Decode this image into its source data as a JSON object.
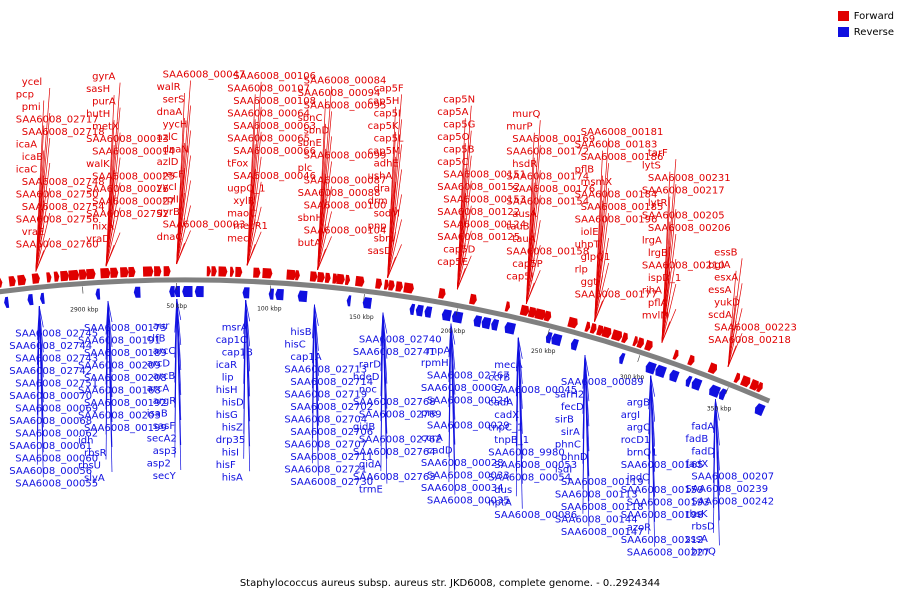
{
  "legend": {
    "forward": "Forward",
    "reverse": "Reverse"
  },
  "colors": {
    "forward": "#e00000",
    "reverse": "#1010e0",
    "backbone": "#808080"
  },
  "caption": "Staphylococcus aureus subsp. aureus str. JKD6008, complete genome. - 0..2924344",
  "ticks": [
    "2900 kbp",
    "50 kbp",
    "100 kbp",
    "150 kbp",
    "200 kbp",
    "250 kbp",
    "300 kbp",
    "350 kbp"
  ],
  "forward_labels": [
    "SAA6008_02760",
    "vraE",
    "SAA6008_02756",
    "SAA6008_02754",
    "SAA6008_02750",
    "SAA6008_02748",
    "icaC",
    "icaB",
    "icaA",
    "SAA6008_02718",
    "SAA6008_02717",
    "pmi",
    "pcp",
    "ycel",
    "vraD",
    "nixA",
    "SAA6008_02752",
    "SAA6008_00027",
    "SAA6008_00026",
    "SAA6008_00025",
    "walK",
    "SAA6008_00014",
    "SAA6008_00013",
    "metX",
    "hutH",
    "purA",
    "sasH",
    "gyrA",
    "dnaC",
    "SAA6008_00003",
    "gyrB",
    "rplI",
    "yycI",
    "recF",
    "azlD",
    "dnaN",
    "azlC",
    "yycH",
    "dnaA",
    "serS",
    "walR",
    "SAA6008_00047",
    "mecI",
    "mecR1",
    "maoC",
    "xylR",
    "ugpQ_1",
    "SAA6008_00046",
    "tFox",
    "SAA6008_00066",
    "SAA6008_00065",
    "SAA6008_00063",
    "SAA6008_00064",
    "SAA6008_00108",
    "SAA6008_00107",
    "SAA6008_00106",
    "butA",
    "SAA6008_00104",
    "sbnH",
    "SAA6008_00100",
    "SAA6008_00088",
    "SAA6008_00087",
    "plc",
    "SAA6008_00099",
    "sbnE",
    "sbnD",
    "sbnC",
    "SAA6008_00095",
    "SAA6008_00094",
    "SAA6008_00084",
    "sasD",
    "sbnI",
    "pnp",
    "sodM",
    "drm",
    "dra",
    "ushA",
    "adhE",
    "cap5M",
    "cap5L",
    "cap5K",
    "cap5I",
    "cap5H",
    "cap5F",
    "cap5E",
    "cap5D",
    "SAA6008_00125",
    "SAA6008_00124",
    "SAA6008_00122",
    "SAA6008_00153",
    "SAA6008_00152",
    "SAA6008_00151",
    "cap5C",
    "cap5B",
    "cap5O",
    "cap5G",
    "cap5A",
    "cap5N",
    "cap5J",
    "cap5P",
    "SAA6008_00158",
    "tauA",
    "tauB",
    "ausA",
    "SAA6008_00154",
    "SAA6008_00176",
    "SAA6008_00174",
    "hsdR",
    "SAA6008_00172",
    "SAA6008_00169",
    "murP",
    "murQ",
    "SAA6008_00177",
    "ggt",
    "rlp",
    "glpQ1",
    "uhpT",
    "iolE",
    "SAA6008_00196",
    "SAA6008_00185",
    "SAA6008_00184",
    "msmX",
    "pflB",
    "SAA6008_00186",
    "SAA6008_00183",
    "SAA6008_00181",
    "mvlM",
    "pflA",
    "rihA",
    "ispD_1",
    "SAA6008_00210",
    "lrgB",
    "lrgA",
    "SAA6008_00206",
    "SAA6008_00205",
    "lytR",
    "SAA6008_00217",
    "SAA6008_00231",
    "lytS",
    "tarF",
    "SAA6008_00218",
    "SAA6008_00223",
    "scdA",
    "yukD",
    "essA",
    "esxA",
    "bglA",
    "essB"
  ],
  "reverse_labels": [
    "SAA6008_02745",
    "SAA6008_02744",
    "SAA6008_02743",
    "SAA6008_02742",
    "SAA6008_02751",
    "SAA6008_00070",
    "SAA6008_00069",
    "SAA6008_00068",
    "SAA6008_00062",
    "SAA6008_00061",
    "SAA6008_00060",
    "SAA6008_00056",
    "SAA6008_00055",
    "SAA6008_00175",
    "SAA6008_00191",
    "SAA6008_00189",
    "SAA6008_00209",
    "SAA6008_00208",
    "SAA6008_00168",
    "SAA6008_00192",
    "SAA6008_00203",
    "SAA6008_00199",
    "idh",
    "rbsR",
    "rbsU",
    "slyA",
    "aur",
    "clfB",
    "arcC",
    "arcD",
    "arcB",
    "arcA",
    "argR",
    "isaB",
    "sasF",
    "secA2",
    "asp3",
    "asp2",
    "secY",
    "msrA",
    "cap1C",
    "cap1B",
    "icaR",
    "lip",
    "hisH",
    "hisD",
    "hisG",
    "hisZ",
    "drp35",
    "hisI",
    "hisF",
    "hisA",
    "hisB",
    "hisC",
    "cap1A",
    "SAA6008_02713",
    "SAA6008_02714",
    "SAA6008_02719",
    "SAA6008_02702",
    "SAA6008_02704",
    "SAA6008_02706",
    "SAA6008_02707",
    "SAA6008_02711",
    "SAA6008_02721",
    "SAA6008_02730",
    "SAA6008_02740",
    "SAA6008_02741",
    "rarD",
    "hdeD",
    "noc",
    "SAA6008_02768",
    "SAA6008_02769",
    "gidB",
    "SAA6008_02762",
    "SAA6008_02764",
    "gidA",
    "SAA6008_02763",
    "trmE",
    "rnpA",
    "rpmH",
    "SAA6008_02767",
    "SAA6008_00007",
    "SAA6008_00024",
    "pre",
    "SAA6008_00029",
    "ccrA",
    "cadD",
    "SAA6008_00028",
    "SAA6008_00033",
    "SAA6008_00034",
    "SAA6008_00035",
    "mecA",
    "ccrB",
    "SAA6008_00045",
    "cadA",
    "cadX",
    "tnpC_1",
    "tnpB_1",
    "SAA6008_9980",
    "SAA6008_00053",
    "SAA6008_00054",
    "dus",
    "nptA",
    "SAA6008_00086",
    "SAA6008_00089",
    "sarH2",
    "fecD",
    "sirB",
    "sirA",
    "phnC",
    "phnD",
    "isdI",
    "SAA6008_00119",
    "SAA6008_00113",
    "SAA6008_00118",
    "SAA6008_00144",
    "SAA6008_00147",
    "argB",
    "argI",
    "argC",
    "rocD1",
    "brnQ1",
    "SAA6008_00165",
    "ipdC",
    "SAA6008_00159",
    "SAA6008_00193",
    "SAA6008_00198",
    "azoR",
    "SAA6008_00212",
    "SAA6008_00227",
    "fadA",
    "fadB",
    "fadD",
    "fadX",
    "SAA6008_00207",
    "SAA6008_00239",
    "SAA6008_00242",
    "rbsK",
    "rbsD",
    "sssA",
    "brnQ"
  ]
}
